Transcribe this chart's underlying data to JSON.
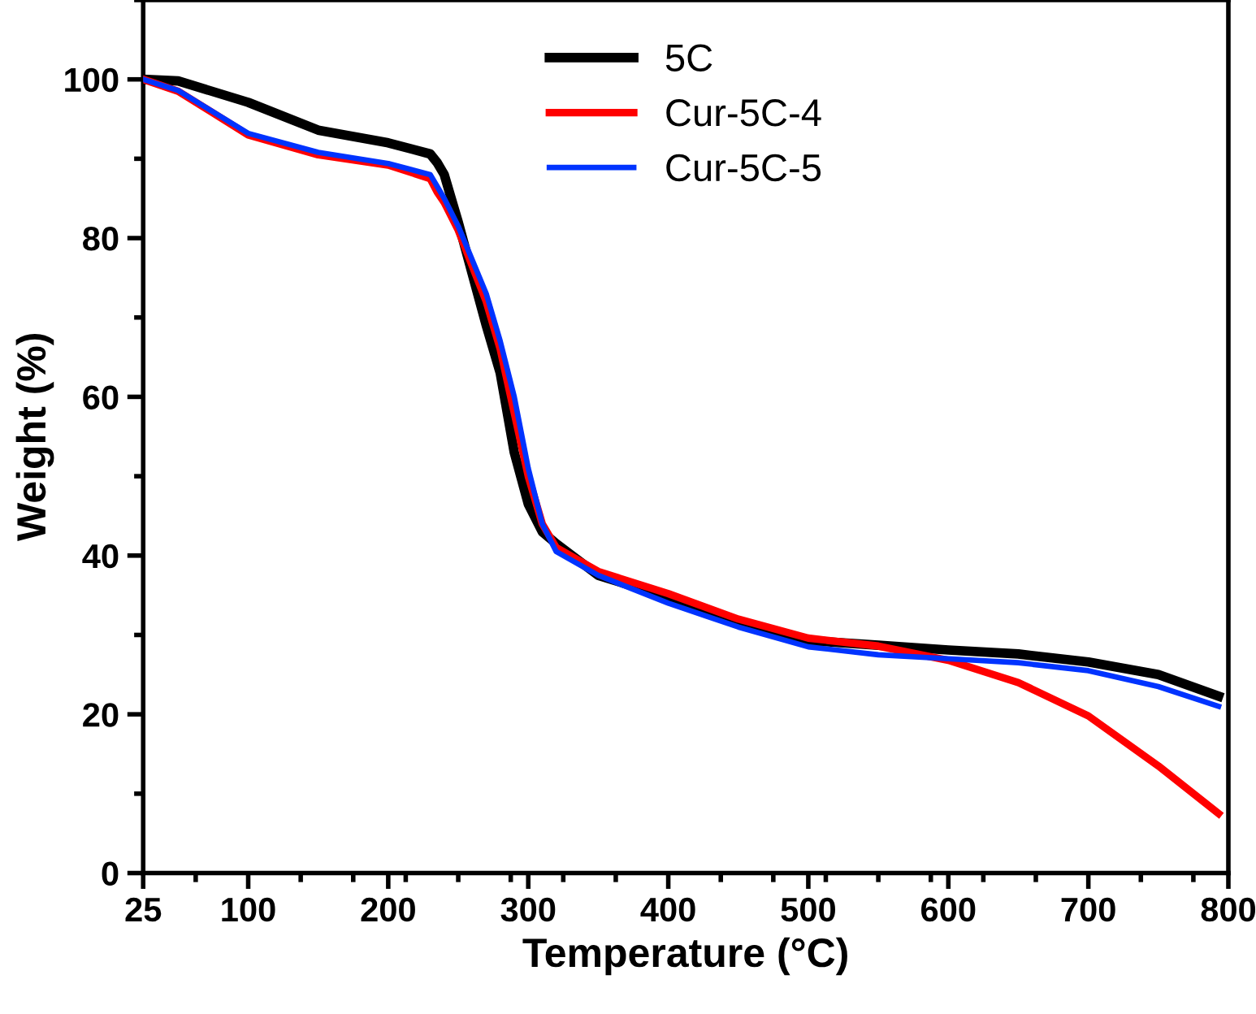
{
  "chart_data": {
    "type": "line",
    "xlabel": "Temperature (°C)",
    "ylabel": "Weight (%)",
    "xlim": [
      25,
      800
    ],
    "ylim": [
      0,
      110
    ],
    "xticks": [
      25,
      100,
      200,
      300,
      400,
      500,
      600,
      700,
      800
    ],
    "yticks": [
      0,
      20,
      40,
      60,
      80,
      100
    ],
    "grid": false,
    "legend": "top",
    "marker": "none",
    "line_style": "solid",
    "x": [
      25,
      50,
      100,
      150,
      200,
      230,
      235,
      240,
      250,
      270,
      280,
      290,
      300,
      310,
      320,
      350,
      400,
      450,
      500,
      550,
      600,
      650,
      700,
      750,
      793
    ],
    "series": [
      {
        "name": "5C",
        "color": "#000000",
        "values": [
          100,
          99.8,
          97.1,
          93.6,
          92,
          90.6,
          89.5,
          88,
          82,
          69,
          63,
          53,
          46.5,
          43,
          41.5,
          37.5,
          34.8,
          31.6,
          29.3,
          28.7,
          28.1,
          27.6,
          26.6,
          25,
          22.3
        ]
      },
      {
        "name": "Cur-5C-4",
        "color": "#ff0000",
        "values": [
          100,
          98.5,
          93,
          90.5,
          89.2,
          87.5,
          85.8,
          84.5,
          81,
          72,
          66,
          58,
          50,
          44,
          41,
          38,
          35.2,
          32,
          29.6,
          28.6,
          26.8,
          24,
          19.8,
          13.5,
          7.5
        ]
      },
      {
        "name": "Cur-5C-5",
        "color": "#0033ff",
        "values": [
          100,
          98.6,
          93.2,
          90.8,
          89.4,
          88,
          86.5,
          85,
          81.5,
          73,
          67,
          60,
          51,
          44,
          40.5,
          37.5,
          34,
          31,
          28.5,
          27.5,
          27,
          26.5,
          25.5,
          23.5,
          21
        ]
      }
    ]
  }
}
